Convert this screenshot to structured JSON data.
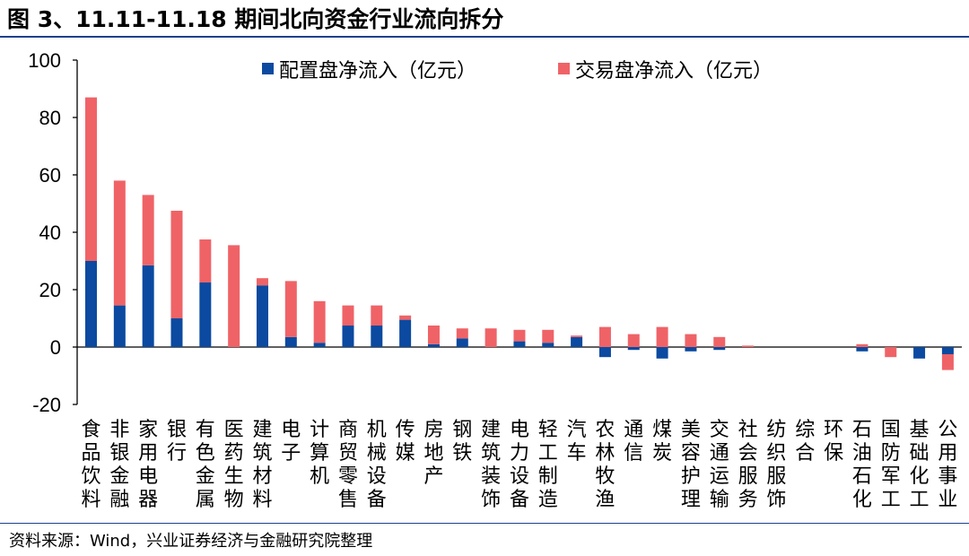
{
  "title": "图 3、11.11-11.18 期间北向资金行业流向拆分",
  "source": "资料来源：Wind，兴业证券经济与金融研究院整理",
  "colors": {
    "alloc": "#0b4aa0",
    "trade": "#ef6367",
    "rule": "#1f3f8f"
  },
  "chart_data": {
    "type": "bar",
    "stacked": true,
    "ylim": [
      -20,
      100
    ],
    "yticks": [
      -20,
      0,
      20,
      40,
      60,
      80,
      100
    ],
    "legend_position": "top",
    "categories": [
      "食品饮料",
      "非银金融",
      "家用电器",
      "银行",
      "有色金属",
      "医药生物",
      "建筑材料",
      "电子",
      "计算机",
      "商贸零售",
      "机械设备",
      "传媒",
      "房地产",
      "钢铁",
      "建筑装饰",
      "电力设备",
      "轻工制造",
      "汽车",
      "农林牧渔",
      "通信",
      "煤炭",
      "美容护理",
      "交通运输",
      "社会服务",
      "纺织服饰",
      "综合",
      "环保",
      "石油石化",
      "国防军工",
      "基础化工",
      "公用事业"
    ],
    "series": [
      {
        "name": "配置盘净流入（亿元）",
        "color_key": "alloc",
        "values": [
          30,
          14.5,
          28.5,
          10,
          22.5,
          0,
          21.5,
          3.5,
          1.5,
          7.5,
          7.5,
          9.5,
          1,
          3,
          0,
          2,
          1.5,
          3.5,
          -3.5,
          -1,
          -4,
          -1.5,
          -1,
          0,
          0,
          0,
          0,
          -1.5,
          0,
          -4,
          -2.5
        ]
      },
      {
        "name": "交易盘净流入（亿元）",
        "color_key": "trade",
        "values": [
          57,
          43.5,
          24.5,
          37.5,
          15,
          35.5,
          2.5,
          19.5,
          14.5,
          7,
          7,
          1.5,
          6.5,
          3.5,
          6.5,
          4,
          4.5,
          0.5,
          7,
          4.5,
          7,
          4.5,
          3.5,
          0.5,
          0,
          0,
          0,
          1,
          -3.5,
          0,
          -5.5
        ]
      }
    ]
  }
}
